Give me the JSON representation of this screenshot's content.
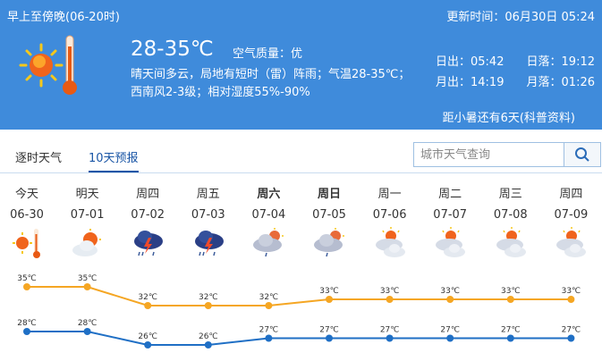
{
  "header": {
    "period": "早上至傍晚(06-20时)",
    "update_time": "更新时间：06月30日 05:24",
    "temp_range": "28-35℃",
    "air_quality": "空气质量：优",
    "desc_line1": "晴天间多云，局地有短时（雷）阵雨；气温28-35℃；",
    "desc_line2": "西南风2-3级；相对湿度55%-90%",
    "sunrise": "日出：05:42",
    "sunset": "日落：19:12",
    "moonrise": "月出：14:19",
    "moonset": "月落：01:26",
    "solar_term": "距小暑还有6天(科普资料)",
    "icon": "sunny-hot-thermometer-icon"
  },
  "tabs": [
    {
      "label": "逐时天气",
      "active": false
    },
    {
      "label": "10天预报",
      "active": true
    }
  ],
  "search": {
    "placeholder": "城市天气查询",
    "icon": "search-icon"
  },
  "colors": {
    "header_bg": "#3f8bdb",
    "high_line": "#f5a623",
    "low_line": "#1f6fc5",
    "active_tab": "#1a56a6"
  },
  "days": [
    {
      "weekday": "今天",
      "date": "06-30",
      "icon": "sunny-hot",
      "bold": false
    },
    {
      "weekday": "明天",
      "date": "07-01",
      "icon": "partly-cloudy",
      "bold": false
    },
    {
      "weekday": "周四",
      "date": "07-02",
      "icon": "thunderstorm",
      "bold": false
    },
    {
      "weekday": "周五",
      "date": "07-03",
      "icon": "thunderstorm",
      "bold": false
    },
    {
      "weekday": "周六",
      "date": "07-04",
      "icon": "shower",
      "bold": true
    },
    {
      "weekday": "周日",
      "date": "07-05",
      "icon": "shower",
      "bold": true
    },
    {
      "weekday": "周一",
      "date": "07-06",
      "icon": "cloudy-sun",
      "bold": false
    },
    {
      "weekday": "周二",
      "date": "07-07",
      "icon": "cloudy-sun",
      "bold": false
    },
    {
      "weekday": "周三",
      "date": "07-08",
      "icon": "cloudy-sun",
      "bold": false
    },
    {
      "weekday": "周四",
      "date": "07-09",
      "icon": "cloudy-sun",
      "bold": false
    }
  ],
  "chart_data": {
    "type": "line",
    "categories": [
      "06-30",
      "07-01",
      "07-02",
      "07-03",
      "07-04",
      "07-05",
      "07-06",
      "07-07",
      "07-08",
      "07-09"
    ],
    "unit": "℃",
    "series": [
      {
        "key": "high",
        "values": [
          35,
          35,
          32,
          32,
          32,
          33,
          33,
          33,
          33,
          33
        ]
      },
      {
        "key": "low",
        "values": [
          28,
          28,
          26,
          26,
          27,
          27,
          27,
          27,
          27,
          27
        ]
      }
    ]
  }
}
